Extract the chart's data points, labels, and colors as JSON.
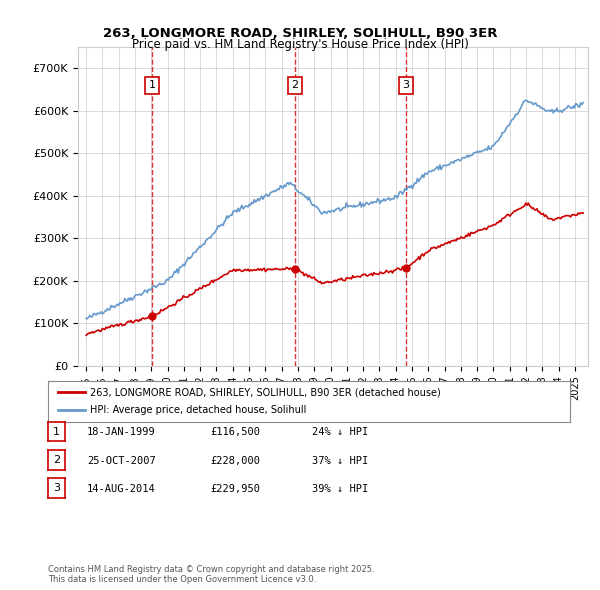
{
  "title_line1": "263, LONGMORE ROAD, SHIRLEY, SOLIHULL, B90 3ER",
  "title_line2": "Price paid vs. HM Land Registry's House Price Index (HPI)",
  "sale_dates_decimal": [
    1999.05,
    2007.81,
    2014.62
  ],
  "sale_prices": [
    116500,
    228000,
    229950
  ],
  "sale_labels": [
    "1",
    "2",
    "3"
  ],
  "vline_color": "#cc0000",
  "sale_marker_color": "#cc0000",
  "hpi_line_color": "#6699cc",
  "price_line_color": "#cc0000",
  "ylim": [
    0,
    750000
  ],
  "yticks": [
    0,
    100000,
    200000,
    300000,
    400000,
    500000,
    600000,
    700000
  ],
  "ytick_labels": [
    "£0",
    "£100K",
    "£200K",
    "£300K",
    "£400K",
    "£500K",
    "£600K",
    "£700K"
  ],
  "xlim_start": 1994.5,
  "xlim_end": 2025.8,
  "legend_line1": "263, LONGMORE ROAD, SHIRLEY, SOLIHULL, B90 3ER (detached house)",
  "legend_line2": "HPI: Average price, detached house, Solihull",
  "table_entries": [
    {
      "label": "1",
      "date": "18-JAN-1999",
      "price": "£116,500",
      "hpi": "24% ↓ HPI"
    },
    {
      "label": "2",
      "date": "25-OCT-2007",
      "price": "£228,000",
      "hpi": "37% ↓ HPI"
    },
    {
      "label": "3",
      "date": "14-AUG-2014",
      "price": "£229,950",
      "hpi": "39% ↓ HPI"
    }
  ],
  "footer_text": "Contains HM Land Registry data © Crown copyright and database right 2025.\nThis data is licensed under the Open Government Licence v3.0.",
  "background_color": "#ffffff",
  "grid_color": "#cccccc"
}
